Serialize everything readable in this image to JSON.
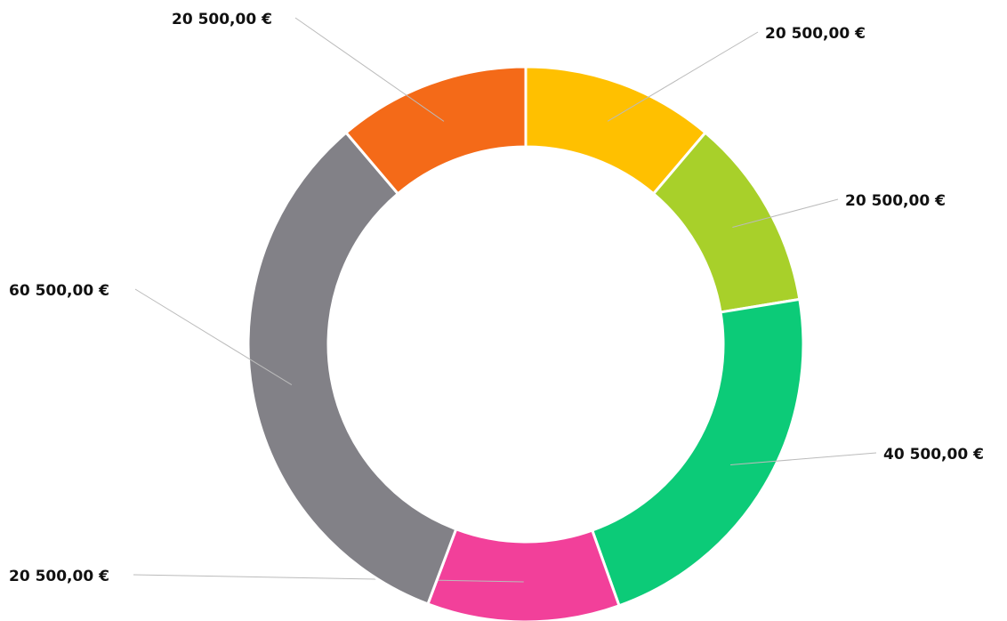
{
  "chart_data": {
    "type": "donut",
    "categories": [
      null,
      null,
      null,
      null,
      null,
      null
    ],
    "values": [
      20500,
      20500,
      40500,
      20500,
      60500,
      20500
    ],
    "value_labels": [
      "20 500,00 €",
      "20 500,00 €",
      "40 500,00 €",
      "20 500,00 €",
      "60 500,00 €",
      "20 500,00 €"
    ],
    "colors": [
      "#ffc000",
      "#a8d02a",
      "#0ccb78",
      "#f2409a",
      "#828187",
      "#f46a18"
    ]
  }
}
